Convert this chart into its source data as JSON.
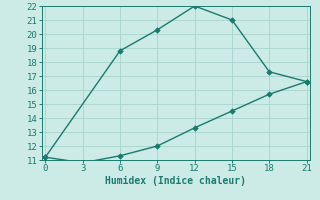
{
  "line1_x": [
    0,
    6,
    9,
    12,
    15,
    18,
    21
  ],
  "line1_y": [
    11.2,
    18.8,
    20.3,
    22.0,
    21.0,
    17.3,
    16.6
  ],
  "line2_x": [
    0,
    3,
    6,
    9,
    12,
    15,
    18,
    21
  ],
  "line2_y": [
    11.2,
    10.8,
    11.3,
    12.0,
    13.3,
    14.5,
    15.7,
    16.6
  ],
  "line_color": "#1a7a6e",
  "bg_color": "#cceae6",
  "grid_color": "#aad4cf",
  "xlabel": "Humidex (Indice chaleur)",
  "xlim": [
    -0.3,
    21.3
  ],
  "ylim": [
    11,
    22
  ],
  "xticks": [
    0,
    3,
    6,
    9,
    12,
    15,
    18,
    21
  ],
  "yticks": [
    11,
    12,
    13,
    14,
    15,
    16,
    17,
    18,
    19,
    20,
    21,
    22
  ],
  "xlabel_fontsize": 7,
  "tick_fontsize": 6.5,
  "marker": "D",
  "marker_size": 2.8,
  "linewidth": 1.0
}
